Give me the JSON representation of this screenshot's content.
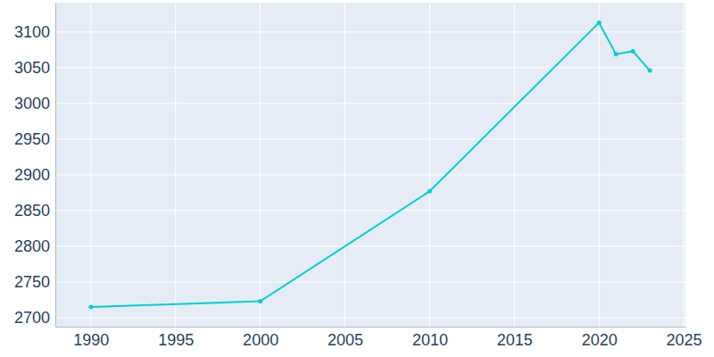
{
  "chart_data": {
    "type": "line",
    "x": [
      1990,
      2000,
      2010,
      2020,
      2021,
      2022,
      2023
    ],
    "values": [
      2715,
      2723,
      2877,
      3113,
      3069,
      3073,
      3046
    ],
    "color": "#00ced1",
    "marker": "circle",
    "xlim": [
      1987.9,
      2025.1
    ],
    "xticks": [
      1990,
      1995,
      2000,
      2005,
      2010,
      2015,
      2020,
      2025
    ],
    "ylim": [
      2687.5,
      3141
    ],
    "yticks": [
      2700,
      2750,
      2800,
      2850,
      2900,
      2950,
      3000,
      3050,
      3100
    ],
    "grid": true
  }
}
